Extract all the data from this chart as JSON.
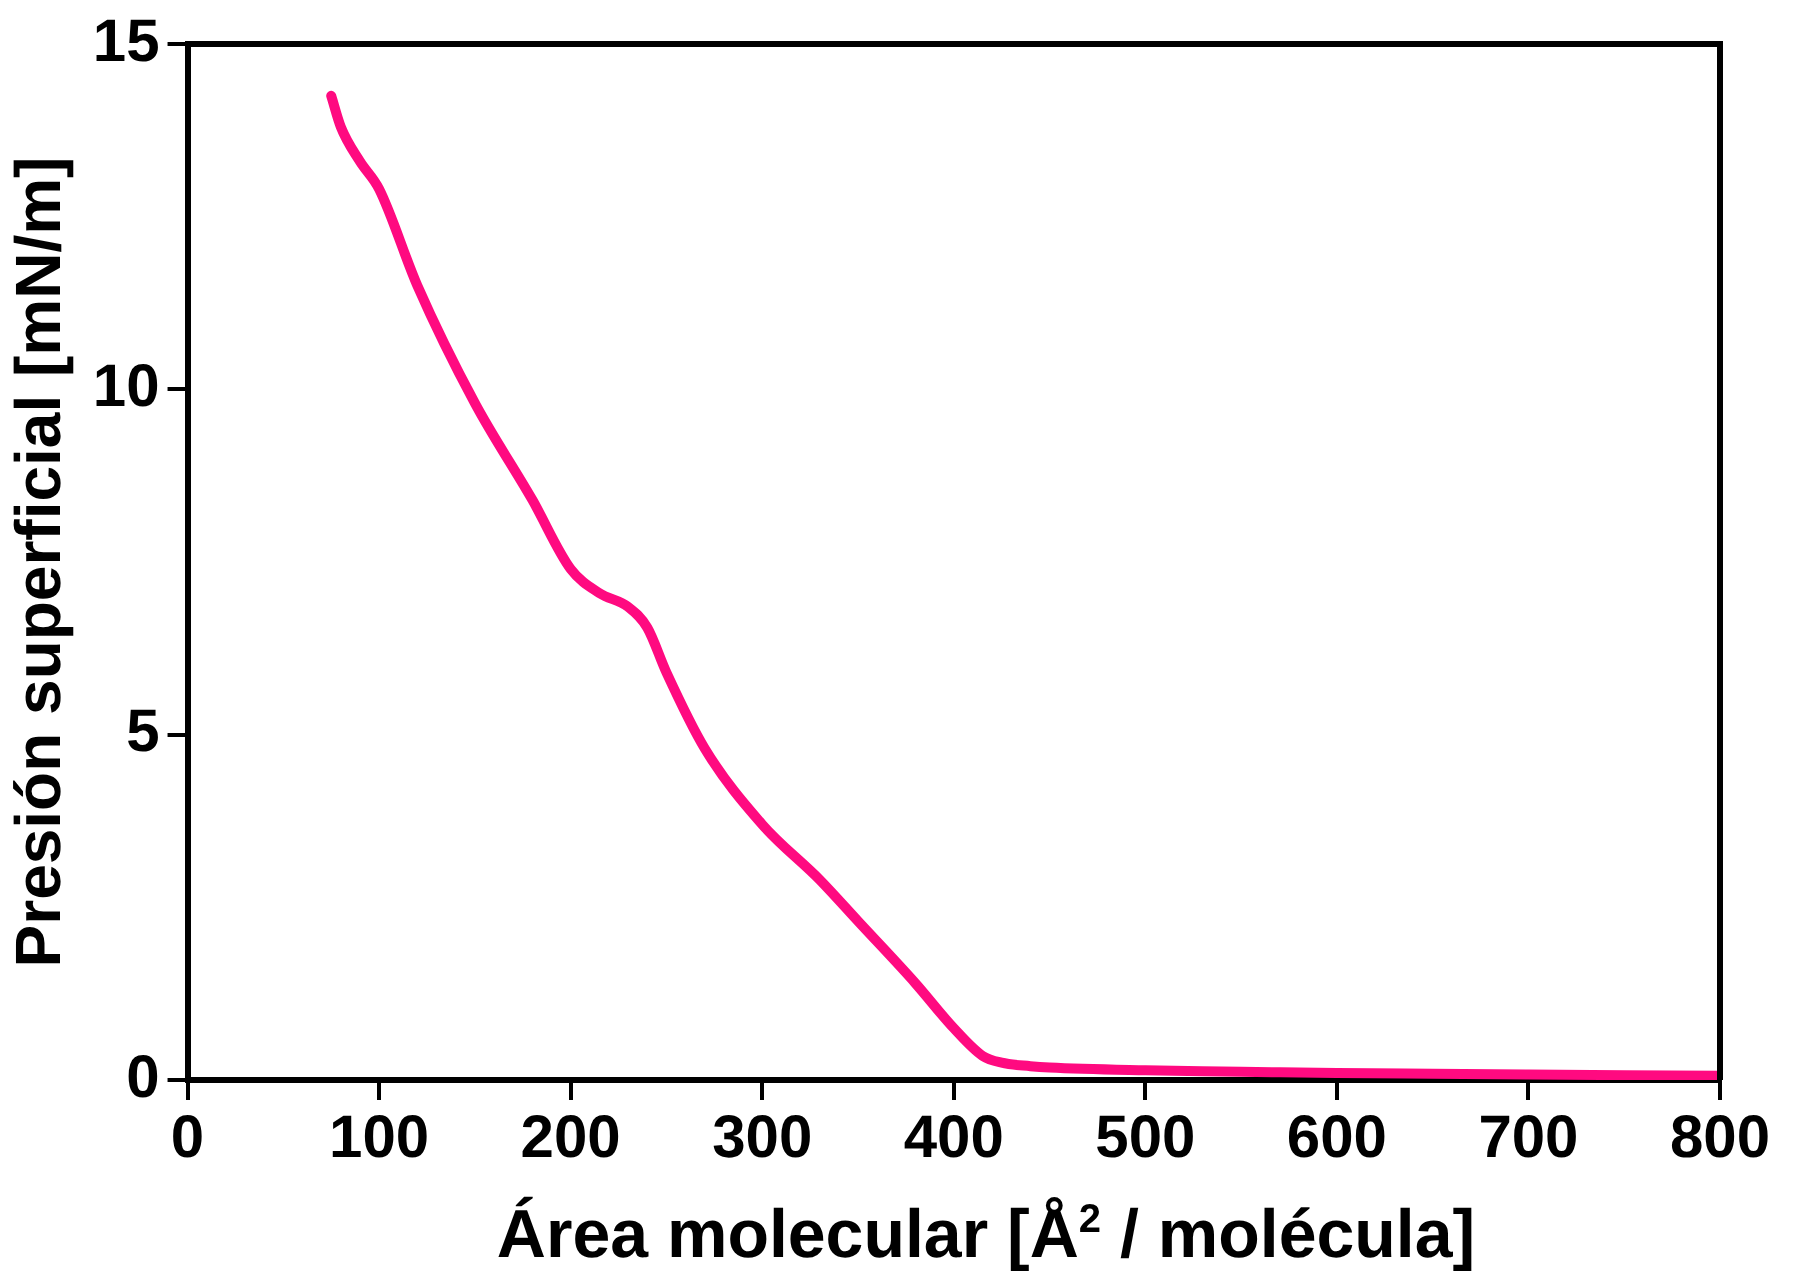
{
  "chart_data": {
    "type": "line",
    "xlabel": "Área molecular  [Å$^{2}$ / molécula]",
    "ylabel": "Presión superficial [mN/m]",
    "x": [
      75,
      80,
      90,
      100,
      120,
      150,
      180,
      200,
      215,
      230,
      240,
      250,
      270,
      300,
      330,
      350,
      380,
      400,
      415,
      425,
      440,
      450,
      500,
      550,
      600,
      650,
      700,
      750,
      800
    ],
    "series": [
      {
        "color": "#ff0a80",
        "values": [
          14.25,
          13.8,
          13.3,
          12.9,
          11.5,
          9.8,
          8.4,
          7.4,
          7.05,
          6.85,
          6.55,
          5.9,
          4.8,
          3.7,
          2.9,
          2.3,
          1.4,
          0.75,
          0.35,
          0.25,
          0.2,
          0.18,
          0.14,
          0.12,
          0.1,
          0.09,
          0.08,
          0.07,
          0.06
        ]
      }
    ],
    "xlim": [
      0,
      800
    ],
    "xticks": [
      0,
      100,
      200,
      300,
      400,
      500,
      600,
      700,
      800
    ],
    "ylim": [
      0,
      15
    ],
    "yticks": [
      0,
      5,
      10,
      15
    ],
    "grid": false,
    "legend": false,
    "marker": "none",
    "line_style": "solid"
  }
}
